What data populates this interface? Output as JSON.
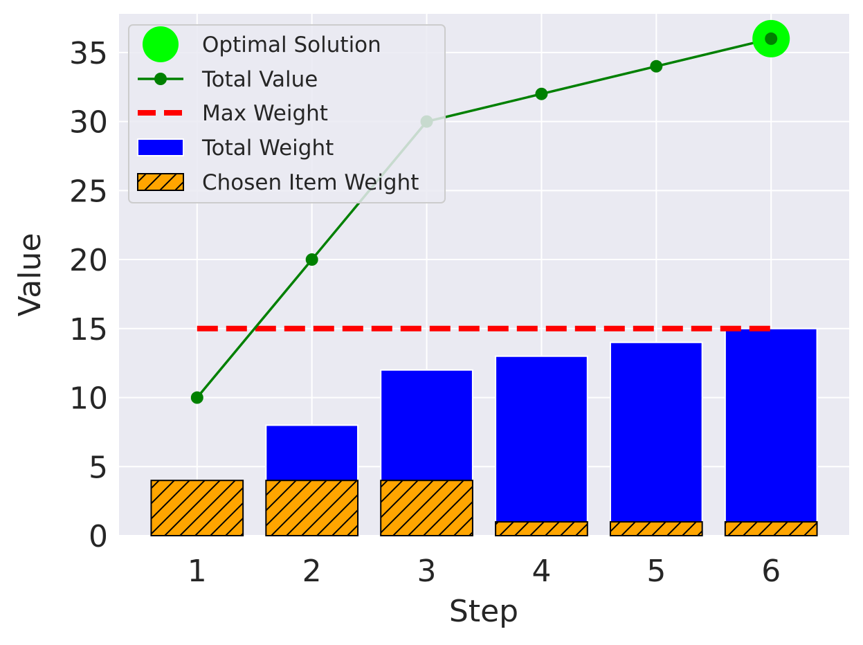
{
  "chart_data": {
    "type": "bar",
    "xlabel": "Step",
    "ylabel": "Value",
    "x": [
      1,
      2,
      3,
      4,
      5,
      6
    ],
    "xticks": [
      "1",
      "2",
      "3",
      "4",
      "5",
      "6"
    ],
    "yticks": [
      "0",
      "5",
      "10",
      "15",
      "20",
      "25",
      "30",
      "35"
    ],
    "ylim": [
      0,
      37.8
    ],
    "xlim": [
      0.32,
      6.68
    ],
    "grid": true,
    "legend_position": "top-left",
    "series": [
      {
        "name": "Total Weight",
        "kind": "bar",
        "color": "#0000ff",
        "values": [
          4,
          8,
          12,
          13,
          14,
          15
        ]
      },
      {
        "name": "Chosen Item Weight",
        "kind": "bar-hatched",
        "color": "#ffa500",
        "values": [
          4,
          4,
          4,
          1,
          1,
          1
        ]
      },
      {
        "name": "Total Value",
        "kind": "line-markers",
        "color": "#008000",
        "values": [
          10,
          20,
          30,
          32,
          34,
          36
        ]
      },
      {
        "name": "Max Weight",
        "kind": "dashed-line",
        "color": "#ff0000",
        "value": 15,
        "x_range": [
          1,
          6
        ]
      },
      {
        "name": "Optimal Solution",
        "kind": "marker",
        "color": "#00ff00",
        "x": 6,
        "y": 36
      }
    ],
    "legend": [
      "Optimal Solution",
      "Total Value",
      "Max Weight",
      "Total Weight",
      "Chosen Item Weight"
    ]
  }
}
